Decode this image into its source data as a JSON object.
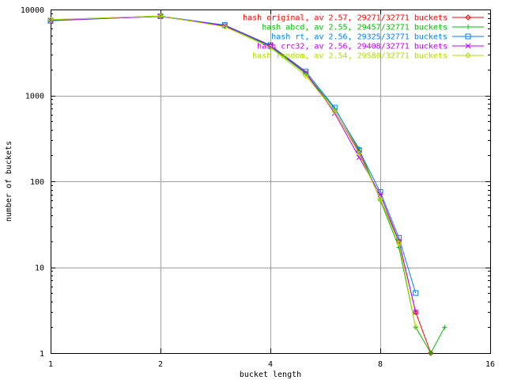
{
  "chart_data": {
    "type": "line",
    "title": "",
    "xlabel": "bucket length",
    "ylabel": "number of buckets",
    "x_scale": "log2",
    "y_scale": "log10",
    "xlim": [
      1,
      16
    ],
    "ylim": [
      1,
      10000
    ],
    "x_ticks": [
      "1",
      "2",
      "4",
      "8",
      "16"
    ],
    "y_ticks": [
      "1",
      "10",
      "100",
      "1000",
      "10000"
    ],
    "grid": true,
    "legend_position": "top-right",
    "series": [
      {
        "name": "hash original, av 2.57, 29271/32771 buckets",
        "color": "#ff0000",
        "marker": "diamond",
        "x": [
          1,
          2,
          3,
          4,
          5,
          6,
          7,
          8,
          9,
          10,
          11
        ],
        "y": [
          7500,
          8300,
          6400,
          3800,
          1800,
          650,
          220,
          62,
          20,
          3,
          1
        ]
      },
      {
        "name": "hash abcd, av 2.55, 29457/32771 buckets",
        "color": "#00c000",
        "marker": "plus",
        "x": [
          1,
          2,
          3,
          4,
          5,
          6,
          7,
          8,
          9,
          10,
          11,
          12
        ],
        "y": [
          7600,
          8400,
          6500,
          3700,
          1800,
          700,
          240,
          60,
          17,
          2,
          1,
          2
        ]
      },
      {
        "name": "hash rt, av 2.56, 29325/32771 buckets",
        "color": "#0080ff",
        "marker": "square",
        "x": [
          1,
          2,
          3,
          4,
          5,
          6,
          7,
          8,
          9,
          10
        ],
        "y": [
          7400,
          8350,
          6600,
          3850,
          1900,
          720,
          230,
          75,
          22,
          5
        ]
      },
      {
        "name": "hash crc32, av 2.56, 29408/32771 buckets",
        "color": "#c000ff",
        "marker": "cross",
        "x": [
          1,
          2,
          3,
          4,
          5,
          6,
          7,
          8,
          9,
          10
        ],
        "y": [
          7500,
          8300,
          6500,
          3800,
          1850,
          620,
          190,
          70,
          20,
          3
        ]
      },
      {
        "name": "hash random, av 2.54, 29580/32771 buckets",
        "color": "#b0e000",
        "marker": "diamond",
        "x": [
          1,
          2,
          3,
          4,
          5,
          6,
          7,
          8,
          9,
          10
        ],
        "y": [
          7600,
          8400,
          6300,
          3600,
          1700,
          650,
          210,
          62,
          19,
          2
        ]
      }
    ]
  }
}
